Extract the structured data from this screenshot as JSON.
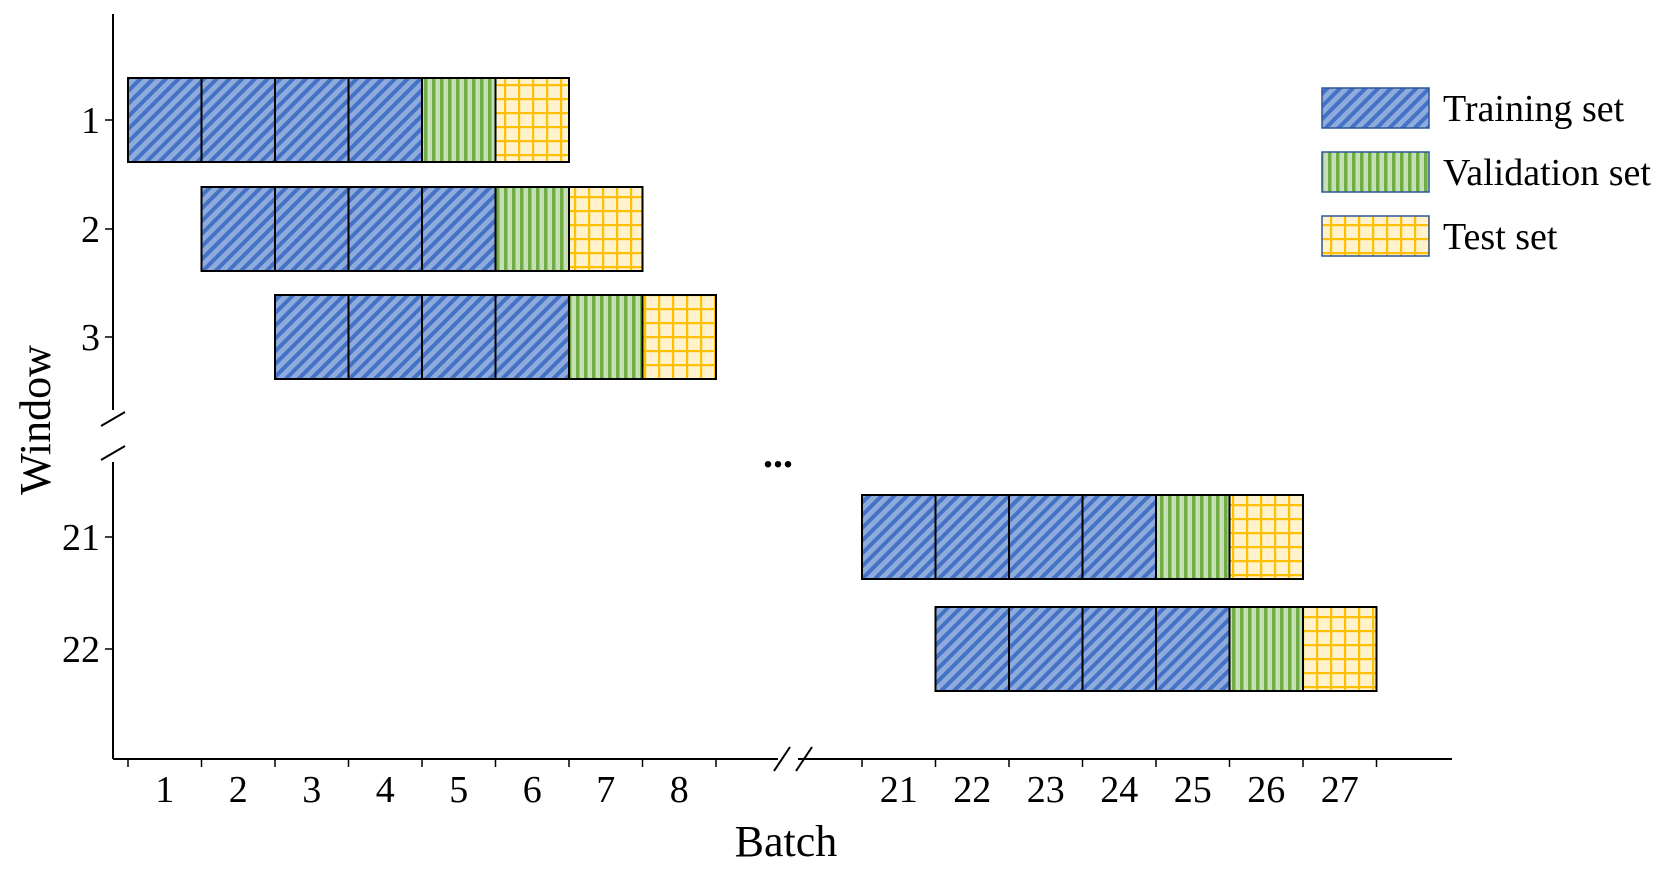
{
  "chart_data": {
    "type": "table",
    "title": "",
    "xlabel": "Batch",
    "ylabel": "Window",
    "x_ticks": [
      "1",
      "2",
      "3",
      "4",
      "5",
      "6",
      "7",
      "8",
      "21",
      "22",
      "23",
      "24",
      "25",
      "26",
      "27"
    ],
    "y_ticks": [
      "1",
      "2",
      "3",
      "21",
      "22"
    ],
    "windows": [
      {
        "window": "1",
        "training": [
          1,
          2,
          3,
          4
        ],
        "validation": [
          5
        ],
        "test": [
          6
        ]
      },
      {
        "window": "2",
        "training": [
          2,
          3,
          4,
          5
        ],
        "validation": [
          6
        ],
        "test": [
          7
        ]
      },
      {
        "window": "3",
        "training": [
          3,
          4,
          5,
          6
        ],
        "validation": [
          7
        ],
        "test": [
          8
        ]
      },
      {
        "window": "21",
        "training": [
          21,
          22,
          23,
          24
        ],
        "validation": [
          25
        ],
        "test": [
          26
        ]
      },
      {
        "window": "22",
        "training": [
          22,
          23,
          24,
          25
        ],
        "validation": [
          26
        ],
        "test": [
          27
        ]
      }
    ],
    "annotation": "...",
    "legend": {
      "position": "top-right",
      "entries": [
        {
          "key": "training",
          "label": "Training set"
        },
        {
          "key": "validation",
          "label": "Validation set"
        },
        {
          "key": "test",
          "label": "Test set"
        }
      ]
    },
    "colors": {
      "training": "#4472C4",
      "training_fill": "#8FAADC",
      "validation": "#70AD47",
      "validation_fill": "#C5E0B4",
      "test": "#FFC000",
      "test_fill": "#FFF2CC"
    }
  }
}
